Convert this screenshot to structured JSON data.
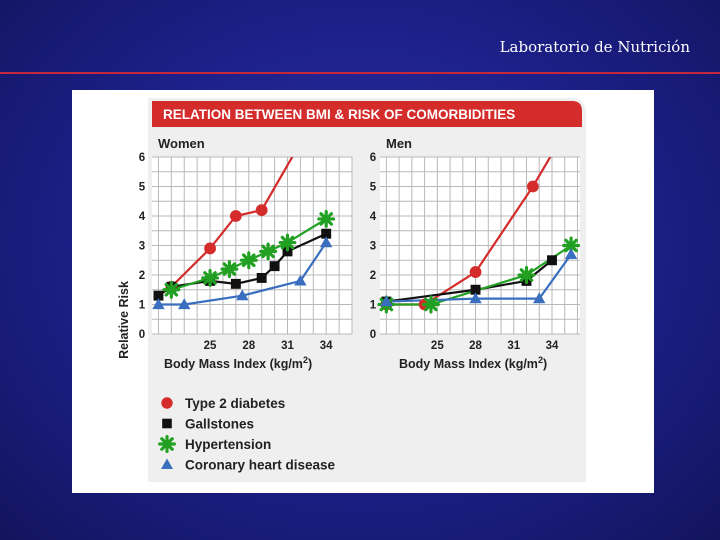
{
  "slide": {
    "header": "Laboratorio de Nutrición"
  },
  "figure": {
    "title": "RELATION BETWEEN BMI & RISK OF COMORBIDITIES",
    "y_axis_label": "Relative Risk",
    "x_axis_label": "Body Mass Index (kg/m",
    "x_axis_label_sup": "2",
    "x_axis_label_close": ")",
    "colors": {
      "banner": "#d42b2b",
      "diabetes": "#d42b2b",
      "gallstones": "#111111",
      "hypertension": "#22a022",
      "chd": "#3a6fc0"
    },
    "legend": [
      {
        "label": "Type 2 diabetes",
        "marker": "circle",
        "color": "#d42b2b"
      },
      {
        "label": "Gallstones",
        "marker": "square",
        "color": "#111111"
      },
      {
        "label": "Hypertension",
        "marker": "asterisk",
        "color": "#22a022"
      },
      {
        "label": "Coronary heart disease",
        "marker": "triangle",
        "color": "#3a6fc0"
      }
    ]
  },
  "chart_data": [
    {
      "type": "line",
      "title": "Women",
      "xlabel": "Body Mass Index (kg/m2)",
      "ylabel": "Relative Risk",
      "xticks": [
        25,
        28,
        31,
        34
      ],
      "yticks": [
        0,
        1,
        2,
        3,
        4,
        5,
        6
      ],
      "xlim": [
        20.5,
        36
      ],
      "ylim": [
        0,
        6
      ],
      "grid": true,
      "series": [
        {
          "name": "Type 2 diabetes",
          "marker": "circle",
          "color": "#d42b2b",
          "x": [
            21,
            22,
            25,
            27,
            29,
            31.5
          ],
          "y": [
            1.3,
            1.6,
            2.9,
            4.0,
            4.2,
            6.1
          ],
          "markers": [
            false,
            true,
            true,
            true,
            true,
            false
          ]
        },
        {
          "name": "Gallstones",
          "marker": "square",
          "color": "#111111",
          "x": [
            21,
            22,
            25,
            27,
            29,
            30,
            31,
            34
          ],
          "y": [
            1.3,
            1.6,
            1.8,
            1.7,
            1.9,
            2.3,
            2.8,
            3.4
          ]
        },
        {
          "name": "Hypertension",
          "marker": "asterisk",
          "color": "#22a022",
          "x": [
            22,
            25,
            26.5,
            28,
            29.5,
            31,
            34
          ],
          "y": [
            1.5,
            1.9,
            2.2,
            2.5,
            2.8,
            3.1,
            3.9
          ]
        },
        {
          "name": "Coronary heart disease",
          "marker": "triangle",
          "color": "#3a6fc0",
          "x": [
            21,
            23,
            27.5,
            32,
            34
          ],
          "y": [
            1.0,
            1.0,
            1.3,
            1.8,
            3.1
          ]
        }
      ]
    },
    {
      "type": "line",
      "title": "Men",
      "xlabel": "Body Mass Index (kg/m2)",
      "ylabel": "Relative Risk",
      "xticks": [
        25,
        28,
        31,
        34
      ],
      "yticks": [
        0,
        1,
        2,
        3,
        4,
        5,
        6
      ],
      "xlim": [
        20.5,
        36.2
      ],
      "ylim": [
        0,
        6
      ],
      "grid": true,
      "series": [
        {
          "name": "Type 2 diabetes",
          "marker": "circle",
          "color": "#d42b2b",
          "x": [
            21,
            24,
            28,
            32.5,
            34
          ],
          "y": [
            1.0,
            1.0,
            2.1,
            5.0,
            6.1
          ],
          "markers": [
            true,
            true,
            true,
            true,
            false
          ]
        },
        {
          "name": "Gallstones",
          "marker": "square",
          "color": "#111111",
          "x": [
            21,
            28,
            32,
            34
          ],
          "y": [
            1.1,
            1.5,
            1.8,
            2.5
          ]
        },
        {
          "name": "Hypertension",
          "marker": "asterisk",
          "color": "#22a022",
          "x": [
            21,
            24.5,
            32,
            35.5
          ],
          "y": [
            1.0,
            1.0,
            2.0,
            3.0
          ]
        },
        {
          "name": "Coronary heart disease",
          "marker": "triangle",
          "color": "#3a6fc0",
          "x": [
            21,
            28,
            33,
            35.5
          ],
          "y": [
            1.1,
            1.2,
            1.2,
            2.7
          ]
        }
      ]
    }
  ]
}
